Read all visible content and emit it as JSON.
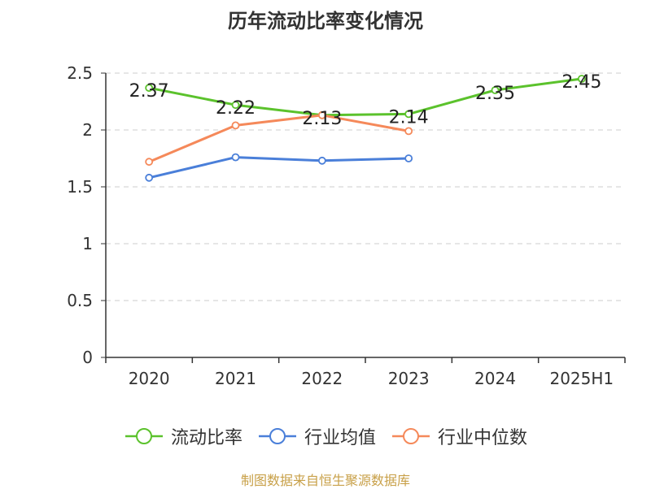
{
  "chart_data": {
    "type": "line",
    "title": "历年流动比率变化情况",
    "categories": [
      "2020",
      "2021",
      "2022",
      "2023",
      "2024",
      "2025H1"
    ],
    "ylim": [
      0,
      2.5
    ],
    "yticks": [
      "0",
      "0.5",
      "1",
      "1.5",
      "2",
      "2.5"
    ],
    "grid": true,
    "legend_position": "bottom",
    "series": [
      {
        "name": "流动比率",
        "color": "#5bc22c",
        "values": [
          2.37,
          2.22,
          2.13,
          2.14,
          2.35,
          2.45
        ],
        "labels": [
          "2.37",
          "2.22",
          "2.13",
          "2.14",
          "2.35",
          "2.45"
        ]
      },
      {
        "name": "行业均值",
        "color": "#4a7fd9",
        "values": [
          1.58,
          1.76,
          1.73,
          1.75,
          null,
          null
        ]
      },
      {
        "name": "行业中位数",
        "color": "#f5895a",
        "values": [
          1.72,
          2.04,
          2.13,
          1.99,
          null,
          null
        ]
      }
    ],
    "source": "制图数据来自恒生聚源数据库"
  }
}
